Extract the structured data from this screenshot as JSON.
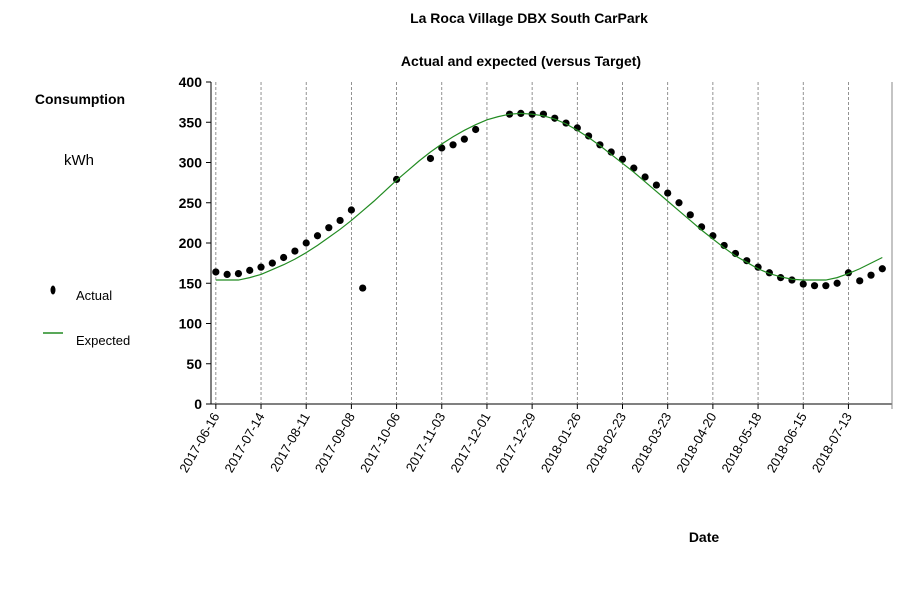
{
  "chart_data": {
    "type": "scatter",
    "title": "La Roca Village DBX South CarPark",
    "subtitle": "Actual and expected (versus Target)",
    "y_label": "Consumption",
    "y_unit": "kWh",
    "x_label": "Date",
    "x": [
      "2017-06-16",
      "2017-06-23",
      "2017-06-30",
      "2017-07-07",
      "2017-07-14",
      "2017-07-21",
      "2017-07-28",
      "2017-08-04",
      "2017-08-11",
      "2017-08-18",
      "2017-08-25",
      "2017-09-01",
      "2017-09-08",
      "2017-09-15",
      "2017-09-22",
      "2017-09-29",
      "2017-10-06",
      "2017-10-13",
      "2017-10-20",
      "2017-10-27",
      "2017-11-03",
      "2017-11-10",
      "2017-11-17",
      "2017-11-24",
      "2017-12-01",
      "2017-12-08",
      "2017-12-15",
      "2017-12-22",
      "2017-12-29",
      "2018-01-05",
      "2018-01-12",
      "2018-01-19",
      "2018-01-26",
      "2018-02-02",
      "2018-02-09",
      "2018-02-16",
      "2018-02-23",
      "2018-03-02",
      "2018-03-09",
      "2018-03-16",
      "2018-03-23",
      "2018-03-30",
      "2018-04-06",
      "2018-04-13",
      "2018-04-20",
      "2018-04-27",
      "2018-05-04",
      "2018-05-11",
      "2018-05-18",
      "2018-05-25",
      "2018-06-01",
      "2018-06-08",
      "2018-06-15",
      "2018-06-22",
      "2018-06-29",
      "2018-07-06",
      "2018-07-13",
      "2018-07-20",
      "2018-07-27",
      "2018-08-03"
    ],
    "series": [
      {
        "name": "Actual",
        "color": "#000000",
        "mark": "dot",
        "values": [
          164,
          161,
          162,
          166,
          170,
          175,
          182,
          190,
          200,
          209,
          219,
          228,
          241,
          144,
          null,
          null,
          279,
          null,
          null,
          305,
          318,
          322,
          329,
          341,
          null,
          null,
          360,
          361,
          360,
          360,
          355,
          349,
          343,
          333,
          322,
          313,
          304,
          293,
          282,
          272,
          262,
          250,
          235,
          220,
          209,
          197,
          187,
          178,
          170,
          163,
          157,
          154,
          149,
          147,
          147,
          150,
          163,
          153,
          160,
          168
        ]
      },
      {
        "name": "Expected",
        "color": "#228b22",
        "mark": "line",
        "values": [
          154,
          154,
          154,
          157,
          161,
          167,
          173,
          180,
          188,
          197,
          207,
          217,
          228,
          240,
          252,
          265,
          278,
          290,
          302,
          313,
          323,
          332,
          340,
          347,
          353,
          357,
          360,
          361,
          360,
          358,
          354,
          348,
          340,
          331,
          321,
          310,
          299,
          288,
          276,
          264,
          252,
          240,
          228,
          216,
          205,
          194,
          184,
          176,
          168,
          162,
          158,
          155,
          154,
          154,
          154,
          157,
          162,
          168,
          175,
          182
        ]
      }
    ],
    "xlim": [
      "2017-06-13",
      "2018-08-09"
    ],
    "xticks": [
      "2017-06-16",
      "2017-07-14",
      "2017-08-11",
      "2017-09-08",
      "2017-10-06",
      "2017-11-03",
      "2017-12-01",
      "2017-12-29",
      "2018-01-26",
      "2018-02-23",
      "2018-03-23",
      "2018-04-20",
      "2018-05-18",
      "2018-06-15",
      "2018-07-13"
    ],
    "ylim": [
      0,
      400
    ],
    "yticks": [
      0,
      50,
      100,
      150,
      200,
      250,
      300,
      350,
      400
    ],
    "grid": true
  }
}
